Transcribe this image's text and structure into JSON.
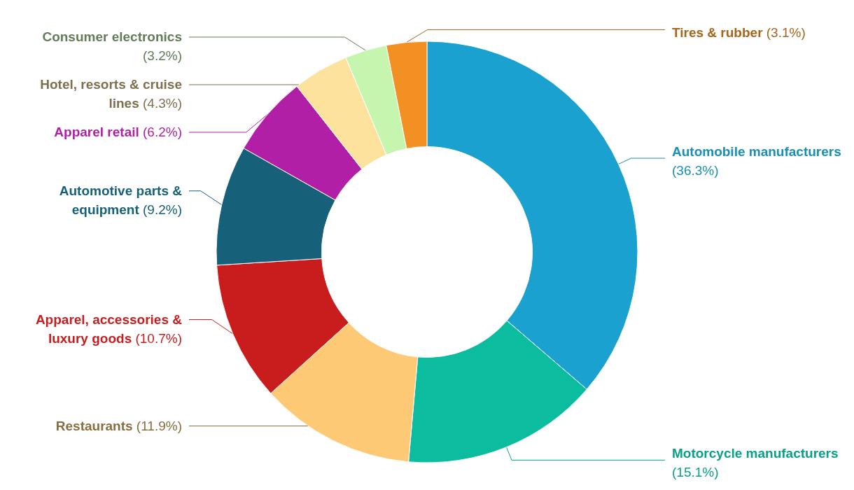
{
  "chart_data": {
    "type": "donut",
    "categories": [
      "Automobile manufacturers",
      "Motorcycle manufacturers",
      "Restaurants",
      "Apparel, accessories & luxury goods",
      "Automotive parts & equipment",
      "Apparel retail",
      "Hotel, resorts & cruise lines",
      "Consumer electronics",
      "Tires & rubber"
    ],
    "values": [
      36.3,
      15.1,
      11.9,
      10.7,
      9.2,
      6.2,
      4.3,
      3.2,
      3.1
    ],
    "value_labels": [
      "(36.3%)",
      "(15.1%)",
      "(11.9%)",
      "(10.7%)",
      "(9.2%)",
      "(6.2%)",
      "(4.3%)",
      "(3.2%)",
      "(3.1%)"
    ],
    "colors": [
      "#1aa1cf",
      "#0bbc9f",
      "#fdc975",
      "#c91d1d",
      "#16607a",
      "#b01fa6",
      "#fde29e",
      "#c6f5b0",
      "#f29023"
    ],
    "legend": false
  }
}
